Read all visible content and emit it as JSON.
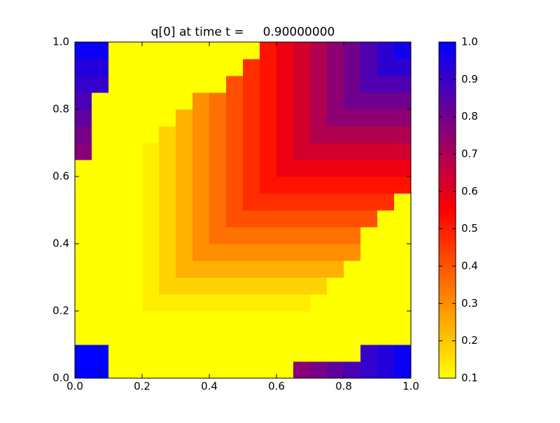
{
  "chart_data": {
    "type": "heatmap",
    "title": "q[0] at time t =     0.90000000",
    "x": [
      0.025,
      0.075,
      0.125,
      0.175,
      0.225,
      0.275,
      0.325,
      0.375,
      0.425,
      0.475,
      0.525,
      0.575,
      0.625,
      0.675,
      0.725,
      0.775,
      0.825,
      0.875,
      0.925,
      0.975
    ],
    "y": [
      0.025,
      0.075,
      0.125,
      0.175,
      0.225,
      0.275,
      0.325,
      0.375,
      0.425,
      0.475,
      0.525,
      0.575,
      0.625,
      0.675,
      0.725,
      0.775,
      0.825,
      0.875,
      0.925,
      0.975
    ],
    "z": [
      [
        1,
        1,
        0.1,
        0.1,
        0.1,
        0.1,
        0.1,
        0.1,
        0.1,
        0.1,
        0.1,
        0.1,
        0.1,
        0.76,
        0.79,
        0.83,
        0.87,
        0.91,
        0.94,
        0.98
      ],
      [
        1,
        1,
        0.1,
        0.1,
        0.1,
        0.1,
        0.1,
        0.1,
        0.1,
        0.1,
        0.1,
        0.1,
        0.1,
        0.1,
        0.1,
        0.1,
        0.1,
        0.91,
        0.94,
        0.98
      ],
      [
        0.1,
        0.1,
        0.1,
        0.1,
        0.1,
        0.1,
        0.1,
        0.1,
        0.1,
        0.1,
        0.1,
        0.1,
        0.1,
        0.1,
        0.1,
        0.1,
        0.1,
        0.1,
        0.1,
        0.1
      ],
      [
        0.1,
        0.1,
        0.1,
        0.1,
        0.1,
        0.1,
        0.1,
        0.1,
        0.1,
        0.1,
        0.1,
        0.1,
        0.1,
        0.1,
        0.1,
        0.1,
        0.1,
        0.1,
        0.1,
        0.1
      ],
      [
        0.1,
        0.1,
        0.1,
        0.1,
        0.13,
        0.13,
        0.13,
        0.13,
        0.13,
        0.13,
        0.13,
        0.13,
        0.13,
        0.13,
        0.1,
        0.1,
        0.1,
        0.1,
        0.1,
        0.1
      ],
      [
        0.1,
        0.1,
        0.1,
        0.1,
        0.13,
        0.18,
        0.18,
        0.18,
        0.18,
        0.18,
        0.18,
        0.18,
        0.18,
        0.18,
        0.18,
        0.1,
        0.1,
        0.1,
        0.1,
        0.1
      ],
      [
        0.1,
        0.1,
        0.1,
        0.1,
        0.13,
        0.18,
        0.24,
        0.24,
        0.24,
        0.24,
        0.24,
        0.24,
        0.24,
        0.24,
        0.24,
        0.24,
        0.1,
        0.1,
        0.1,
        0.1
      ],
      [
        0.1,
        0.1,
        0.1,
        0.1,
        0.13,
        0.18,
        0.24,
        0.3,
        0.3,
        0.3,
        0.3,
        0.3,
        0.3,
        0.3,
        0.3,
        0.3,
        0.3,
        0.1,
        0.1,
        0.1
      ],
      [
        0.1,
        0.1,
        0.1,
        0.1,
        0.13,
        0.18,
        0.24,
        0.3,
        0.35,
        0.35,
        0.35,
        0.35,
        0.35,
        0.35,
        0.35,
        0.35,
        0.35,
        0.1,
        0.1,
        0.1
      ],
      [
        0.1,
        0.1,
        0.1,
        0.1,
        0.13,
        0.18,
        0.24,
        0.3,
        0.35,
        0.41,
        0.41,
        0.41,
        0.41,
        0.41,
        0.41,
        0.41,
        0.41,
        0.41,
        0.1,
        0.1
      ],
      [
        0.1,
        0.1,
        0.1,
        0.1,
        0.13,
        0.18,
        0.24,
        0.3,
        0.35,
        0.41,
        0.47,
        0.47,
        0.47,
        0.47,
        0.47,
        0.47,
        0.47,
        0.47,
        0.47,
        0.1
      ],
      [
        0.1,
        0.1,
        0.1,
        0.1,
        0.13,
        0.18,
        0.24,
        0.3,
        0.35,
        0.41,
        0.47,
        0.52,
        0.52,
        0.52,
        0.52,
        0.52,
        0.52,
        0.52,
        0.52,
        0.52
      ],
      [
        0.1,
        0.1,
        0.1,
        0.1,
        0.13,
        0.18,
        0.24,
        0.3,
        0.35,
        0.41,
        0.47,
        0.52,
        0.58,
        0.58,
        0.58,
        0.58,
        0.58,
        0.58,
        0.58,
        0.58
      ],
      [
        0.76,
        0.1,
        0.1,
        0.1,
        0.13,
        0.18,
        0.24,
        0.3,
        0.35,
        0.41,
        0.47,
        0.52,
        0.58,
        0.63,
        0.63,
        0.63,
        0.63,
        0.63,
        0.63,
        0.63
      ],
      [
        0.79,
        0.1,
        0.1,
        0.1,
        0.1,
        0.18,
        0.24,
        0.3,
        0.35,
        0.41,
        0.47,
        0.52,
        0.58,
        0.63,
        0.69,
        0.69,
        0.69,
        0.69,
        0.69,
        0.69
      ],
      [
        0.83,
        0.1,
        0.1,
        0.1,
        0.1,
        0.1,
        0.24,
        0.3,
        0.35,
        0.41,
        0.47,
        0.52,
        0.58,
        0.63,
        0.69,
        0.75,
        0.75,
        0.75,
        0.75,
        0.75
      ],
      [
        0.87,
        0.1,
        0.1,
        0.1,
        0.1,
        0.1,
        0.1,
        0.3,
        0.35,
        0.41,
        0.47,
        0.52,
        0.58,
        0.63,
        0.69,
        0.75,
        0.8,
        0.8,
        0.8,
        0.8
      ],
      [
        0.91,
        0.91,
        0.1,
        0.1,
        0.1,
        0.1,
        0.1,
        0.1,
        0.1,
        0.41,
        0.47,
        0.52,
        0.58,
        0.63,
        0.69,
        0.75,
        0.8,
        0.86,
        0.86,
        0.86
      ],
      [
        0.94,
        0.94,
        0.1,
        0.1,
        0.1,
        0.1,
        0.1,
        0.1,
        0.1,
        0.1,
        0.47,
        0.52,
        0.58,
        0.63,
        0.69,
        0.75,
        0.8,
        0.86,
        0.92,
        0.92
      ],
      [
        0.98,
        0.98,
        0.1,
        0.1,
        0.1,
        0.1,
        0.1,
        0.1,
        0.1,
        0.1,
        0.1,
        0.52,
        0.58,
        0.63,
        0.69,
        0.75,
        0.8,
        0.86,
        0.92,
        0.97
      ]
    ],
    "colors": [
      "#ffff00",
      "#ff0000",
      "#0000ff"
    ],
    "clim": [
      0.1,
      1
    ],
    "cticks": [
      0.1,
      0.2,
      0.3,
      0.4,
      0.5,
      0.6,
      0.7,
      0.8,
      0.9,
      {
        "value": 1,
        "label": "1.0"
      }
    ],
    "xlim": [
      0,
      1
    ],
    "ylim": [
      0,
      1
    ],
    "xticks": [
      {
        "value": 0,
        "label": "0.0"
      },
      0.2,
      0.4,
      0.6,
      0.8,
      {
        "value": 1,
        "label": "1.0"
      }
    ],
    "yticks": [
      {
        "value": 0,
        "label": "0.0"
      },
      0.2,
      0.4,
      0.6,
      0.8,
      {
        "value": 1,
        "label": "1.0"
      }
    ]
  }
}
